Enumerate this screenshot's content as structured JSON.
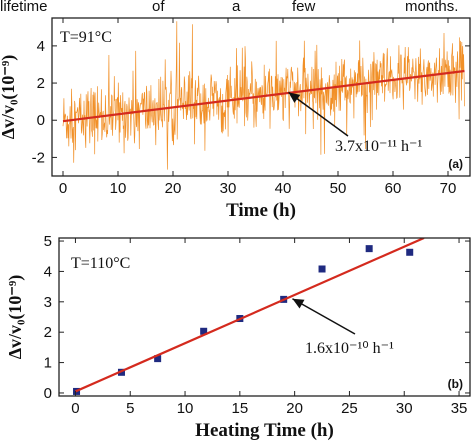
{
  "header_text": {
    "words": [
      "lifetime",
      "of",
      "a",
      "few",
      "months."
    ]
  },
  "chart_data": [
    {
      "type": "line",
      "panel_label": "(a)",
      "xlabel": "Time (h)",
      "ylabel": "Δv/v₀(10⁻⁹)",
      "xlim": [
        -2,
        74
      ],
      "ylim": [
        -3,
        5.5
      ],
      "xticks": [
        0,
        10,
        20,
        30,
        40,
        50,
        60,
        70
      ],
      "yticks": [
        -2,
        0,
        2,
        4
      ],
      "annotation_condition": "T=91°C",
      "annotation_slope": "3.7x10⁻¹¹ h⁻¹",
      "annotation_arrow_target": {
        "x": 41,
        "y": 1.5
      },
      "series": [
        {
          "kind": "noisy-measurement",
          "color": "#f08a1c",
          "x_range": [
            0,
            73
          ],
          "trend": {
            "start": [
              0,
              -0.05
            ],
            "end": [
              73,
              2.65
            ]
          },
          "noise_amplitude": 1.6
        },
        {
          "kind": "linear-fit",
          "color": "#d42a1e",
          "x": [
            0,
            73
          ],
          "y": [
            -0.05,
            2.65
          ]
        }
      ]
    },
    {
      "type": "scatter",
      "panel_label": "(b)",
      "xlabel": "Heating Time (h)",
      "ylabel": "Δv/v₀(10⁻⁹)",
      "xlim": [
        -1.5,
        36
      ],
      "ylim": [
        -0.1,
        5.1
      ],
      "xticks": [
        0,
        5,
        10,
        15,
        20,
        25,
        30,
        35
      ],
      "yticks": [
        0,
        1,
        2,
        3,
        4,
        5
      ],
      "annotation_condition": "T=110°C",
      "annotation_slope": "1.6x10⁻¹⁰ h⁻¹",
      "annotation_arrow_target": {
        "x": 19.8,
        "y": 3.1
      },
      "series": [
        {
          "kind": "measurement",
          "marker": "square",
          "color": "#1f2a80",
          "x": [
            0.1,
            4.2,
            7.5,
            11.7,
            15.0,
            19.0,
            22.5,
            26.8,
            30.5
          ],
          "y": [
            0.05,
            0.68,
            1.13,
            2.03,
            2.45,
            3.08,
            4.08,
            4.75,
            4.63
          ]
        },
        {
          "kind": "linear-fit",
          "color": "#d42a1e",
          "x": [
            0,
            31.8
          ],
          "y": [
            0.05,
            5.1
          ]
        }
      ]
    }
  ]
}
